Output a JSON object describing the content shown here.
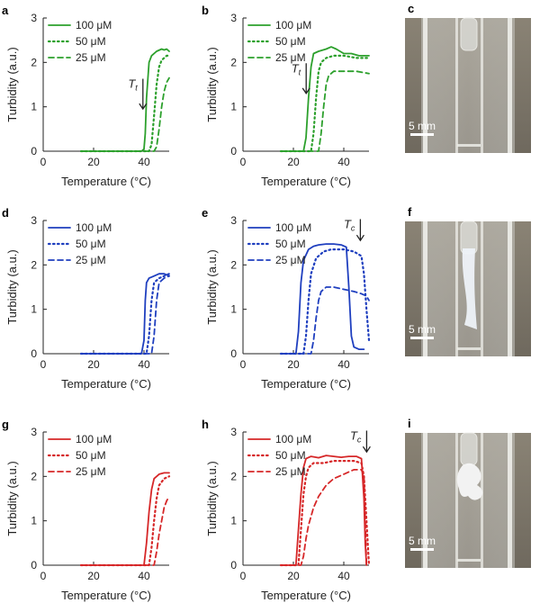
{
  "chart_data": [
    {
      "panel": "a",
      "type": "line",
      "color": "#2ca02c",
      "xlabel": "Temperature (°C)",
      "ylabel": "Turbidity (a.u.)",
      "xlim": [
        0,
        50
      ],
      "ylim": [
        0,
        3
      ],
      "xticks": [
        0,
        20,
        40
      ],
      "yticks": [
        0,
        1,
        2,
        3
      ],
      "legend_position": "top-left",
      "series": [
        {
          "name": "100 μM",
          "style": "solid",
          "x": [
            15,
            39,
            40,
            40.5,
            41,
            42,
            43,
            45,
            47,
            48,
            49,
            50
          ],
          "y": [
            0,
            0,
            0.05,
            0.4,
            1.2,
            2.0,
            2.15,
            2.25,
            2.3,
            2.28,
            2.3,
            2.25
          ]
        },
        {
          "name": "50 μM",
          "style": "dotted",
          "x": [
            15,
            42,
            43,
            44,
            45,
            46,
            47,
            48,
            49,
            50
          ],
          "y": [
            0,
            0,
            0.15,
            0.8,
            1.5,
            1.9,
            2.05,
            2.1,
            2.15,
            2.15
          ]
        },
        {
          "name": "25 μM",
          "style": "dashed",
          "x": [
            15,
            44,
            45,
            46,
            47,
            48,
            49,
            50
          ],
          "y": [
            0,
            0,
            0.1,
            0.5,
            1.0,
            1.35,
            1.55,
            1.65
          ]
        }
      ],
      "annotation": {
        "main": "T",
        "sub": "t",
        "x": 38.5,
        "y_top": 1.55,
        "y_bottom": 0.95
      }
    },
    {
      "panel": "b",
      "type": "line",
      "color": "#2ca02c",
      "xlabel": "Temperature (°C)",
      "ylabel": "Turbidity (a.u.)",
      "xlim": [
        0,
        50
      ],
      "ylim": [
        0,
        3
      ],
      "xticks": [
        0,
        20,
        40
      ],
      "yticks": [
        0,
        1,
        2,
        3
      ],
      "legend_position": "top-left",
      "series": [
        {
          "name": "100 μM",
          "style": "solid",
          "x": [
            15,
            24,
            25,
            26,
            27,
            28,
            30,
            33,
            35,
            37,
            40,
            43,
            46,
            50
          ],
          "y": [
            0,
            0,
            0.3,
            1.2,
            1.9,
            2.2,
            2.25,
            2.3,
            2.35,
            2.3,
            2.2,
            2.2,
            2.15,
            2.15
          ]
        },
        {
          "name": "50 μM",
          "style": "dotted",
          "x": [
            15,
            27,
            28,
            29,
            30,
            31,
            33,
            36,
            40,
            45,
            50
          ],
          "y": [
            0,
            0,
            0.4,
            1.2,
            1.8,
            2.0,
            2.1,
            2.15,
            2.15,
            2.1,
            2.1
          ]
        },
        {
          "name": "25 μM",
          "style": "dashed",
          "x": [
            15,
            30,
            31,
            32,
            33,
            34,
            36,
            40,
            45,
            50
          ],
          "y": [
            0,
            0,
            0.4,
            1.0,
            1.5,
            1.7,
            1.8,
            1.8,
            1.8,
            1.75
          ]
        }
      ],
      "annotation": {
        "main": "T",
        "sub": "t",
        "x": 24,
        "y_top": 1.9,
        "y_bottom": 1.3
      }
    },
    {
      "panel": "d",
      "type": "line",
      "color": "#1f3fbf",
      "xlabel": "Temperature (°C)",
      "ylabel": "Turbidity (a.u.)",
      "xlim": [
        0,
        50
      ],
      "ylim": [
        0,
        3
      ],
      "xticks": [
        0,
        20,
        40
      ],
      "yticks": [
        0,
        1,
        2,
        3
      ],
      "legend_position": "top-left",
      "series": [
        {
          "name": "100 μM",
          "style": "solid",
          "x": [
            15,
            39,
            40,
            40.5,
            41,
            42,
            44,
            46,
            48,
            50
          ],
          "y": [
            0,
            0,
            0.3,
            1.2,
            1.6,
            1.7,
            1.75,
            1.8,
            1.8,
            1.75
          ]
        },
        {
          "name": "50 μM",
          "style": "dotted",
          "x": [
            15,
            41,
            42,
            43,
            44,
            46,
            48,
            50
          ],
          "y": [
            0,
            0,
            0.4,
            1.2,
            1.6,
            1.7,
            1.75,
            1.8
          ]
        },
        {
          "name": "25 μM",
          "style": "dashed",
          "x": [
            15,
            43,
            44,
            45,
            46,
            48,
            50
          ],
          "y": [
            0,
            0,
            0.4,
            1.2,
            1.6,
            1.7,
            1.75
          ]
        }
      ]
    },
    {
      "panel": "e",
      "type": "line",
      "color": "#1f3fbf",
      "xlabel": "Temperature (°C)",
      "ylabel": "Turbidity (a.u.)",
      "xlim": [
        0,
        50
      ],
      "ylim": [
        0,
        3
      ],
      "xticks": [
        0,
        20,
        40
      ],
      "yticks": [
        0,
        1,
        2,
        3
      ],
      "legend_position": "top-left",
      "series": [
        {
          "name": "100 μM",
          "style": "solid",
          "x": [
            15,
            21,
            22,
            23,
            24,
            26,
            28,
            30,
            33,
            36,
            39,
            41,
            42,
            43,
            44,
            46,
            48
          ],
          "y": [
            0,
            0,
            0.5,
            1.6,
            2.1,
            2.35,
            2.42,
            2.45,
            2.47,
            2.47,
            2.45,
            2.4,
            1.5,
            0.4,
            0.15,
            0.1,
            0.1
          ]
        },
        {
          "name": "50 μM",
          "style": "dotted",
          "x": [
            15,
            24,
            25,
            26,
            27,
            29,
            32,
            35,
            40,
            44,
            47,
            48,
            49,
            50
          ],
          "y": [
            0,
            0,
            0.4,
            1.2,
            1.8,
            2.15,
            2.3,
            2.35,
            2.35,
            2.3,
            2.2,
            1.8,
            1.0,
            0.3
          ]
        },
        {
          "name": "25 μM",
          "style": "dashed",
          "x": [
            15,
            27,
            28,
            29,
            30,
            31,
            33,
            36,
            40,
            44,
            47,
            49,
            50
          ],
          "y": [
            0,
            0,
            0.3,
            0.8,
            1.2,
            1.4,
            1.5,
            1.5,
            1.45,
            1.4,
            1.35,
            1.3,
            1.2
          ]
        }
      ],
      "annotation": {
        "main": "T",
        "sub": "c",
        "x": 45.5,
        "y_top": 2.95,
        "y_bottom": 2.55
      }
    },
    {
      "panel": "g",
      "type": "line",
      "color": "#d62728",
      "xlabel": "Temperature (°C)",
      "ylabel": "Turbidity (a.u.)",
      "xlim": [
        0,
        50
      ],
      "ylim": [
        0,
        3
      ],
      "xticks": [
        0,
        20,
        40
      ],
      "yticks": [
        0,
        1,
        2,
        3
      ],
      "legend_position": "top-left",
      "series": [
        {
          "name": "100 μM",
          "style": "solid",
          "x": [
            15,
            40,
            41,
            42,
            43,
            44,
            46,
            48,
            50
          ],
          "y": [
            0,
            0,
            0.5,
            1.2,
            1.7,
            1.95,
            2.05,
            2.08,
            2.08
          ]
        },
        {
          "name": "50 μM",
          "style": "dotted",
          "x": [
            15,
            42,
            43,
            44,
            45,
            46,
            48,
            50
          ],
          "y": [
            0,
            0,
            0.4,
            1.0,
            1.5,
            1.8,
            1.95,
            2.0
          ]
        },
        {
          "name": "25 μM",
          "style": "dashed",
          "x": [
            15,
            44,
            45,
            46,
            47,
            48,
            49,
            50
          ],
          "y": [
            0,
            0,
            0.3,
            0.7,
            1.0,
            1.3,
            1.45,
            1.55
          ]
        }
      ]
    },
    {
      "panel": "h",
      "type": "line",
      "color": "#d62728",
      "xlabel": "Temperature (°C)",
      "ylabel": "Turbidity (a.u.)",
      "xlim": [
        0,
        50
      ],
      "ylim": [
        0,
        3
      ],
      "xticks": [
        0,
        20,
        40
      ],
      "yticks": [
        0,
        1,
        2,
        3
      ],
      "legend_position": "top-left",
      "series": [
        {
          "name": "100 μM",
          "style": "solid",
          "x": [
            15,
            21,
            22,
            23,
            24,
            25,
            27,
            30,
            33,
            36,
            39,
            42,
            45,
            47,
            48,
            48.5,
            49
          ],
          "y": [
            0,
            0,
            0.8,
            1.6,
            2.2,
            2.4,
            2.45,
            2.42,
            2.47,
            2.45,
            2.43,
            2.45,
            2.45,
            2.4,
            1.5,
            0.5,
            0
          ]
        },
        {
          "name": "50 μM",
          "style": "dotted",
          "x": [
            15,
            22,
            23,
            24,
            25,
            26,
            28,
            32,
            36,
            40,
            44,
            47,
            48,
            49,
            50
          ],
          "y": [
            0,
            0,
            0.8,
            1.6,
            2.0,
            2.2,
            2.3,
            2.3,
            2.35,
            2.35,
            2.35,
            2.3,
            2.0,
            1.0,
            0
          ]
        },
        {
          "name": "25 μM",
          "style": "dashed",
          "x": [
            15,
            23,
            24,
            25,
            26,
            28,
            30,
            33,
            36,
            40,
            44,
            47,
            48,
            48.5,
            49
          ],
          "y": [
            0,
            0,
            0.2,
            0.6,
            0.9,
            1.3,
            1.55,
            1.8,
            1.95,
            2.05,
            2.15,
            2.15,
            2.0,
            1.0,
            0
          ]
        }
      ],
      "annotation": {
        "main": "T",
        "sub": "c",
        "x": 48,
        "y_top": 2.95,
        "y_bottom": 2.55
      }
    }
  ],
  "panel_labels": [
    "a",
    "b",
    "c",
    "d",
    "e",
    "f",
    "g",
    "h",
    "i"
  ],
  "photos": [
    {
      "panel": "c",
      "scale_label": "5 mm",
      "state": "clear"
    },
    {
      "panel": "f",
      "scale_label": "5 mm",
      "state": "turbid-column"
    },
    {
      "panel": "i",
      "scale_label": "5 mm",
      "state": "aggregate"
    }
  ]
}
